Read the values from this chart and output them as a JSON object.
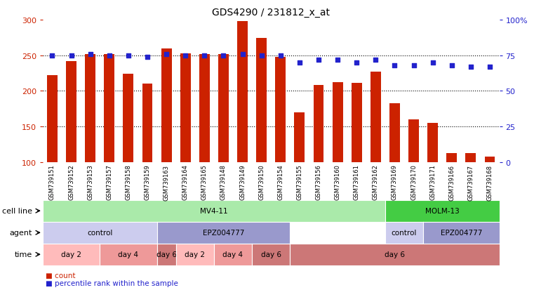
{
  "title": "GDS4290 / 231812_x_at",
  "samples": [
    "GSM739151",
    "GSM739152",
    "GSM739153",
    "GSM739157",
    "GSM739158",
    "GSM739159",
    "GSM739163",
    "GSM739164",
    "GSM739165",
    "GSM739148",
    "GSM739149",
    "GSM739150",
    "GSM739154",
    "GSM739155",
    "GSM739156",
    "GSM739160",
    "GSM739161",
    "GSM739162",
    "GSM739169",
    "GSM739170",
    "GSM739171",
    "GSM739166",
    "GSM739167",
    "GSM739168"
  ],
  "counts": [
    222,
    242,
    252,
    252,
    224,
    210,
    260,
    253,
    252,
    252,
    298,
    274,
    248,
    170,
    208,
    212,
    211,
    227,
    183,
    160,
    155,
    113,
    113,
    108
  ],
  "percentile": [
    75,
    75,
    76,
    75,
    75,
    74,
    76,
    75,
    75,
    75,
    76,
    75,
    75,
    70,
    72,
    72,
    70,
    72,
    68,
    68,
    70,
    68,
    67,
    67
  ],
  "bar_color": "#cc2200",
  "dot_color": "#2222cc",
  "ylim_left": [
    100,
    300
  ],
  "ylim_right": [
    0,
    100
  ],
  "yticks_left": [
    100,
    150,
    200,
    250,
    300
  ],
  "yticks_right": [
    0,
    25,
    50,
    75,
    100
  ],
  "grid_values": [
    150,
    200,
    250
  ],
  "cell_line_groups": [
    {
      "label": "MV4-11",
      "start": 0,
      "end": 18,
      "color": "#aaeaaa"
    },
    {
      "label": "MOLM-13",
      "start": 18,
      "end": 24,
      "color": "#44cc44"
    }
  ],
  "agent_groups": [
    {
      "label": "control",
      "start": 0,
      "end": 6,
      "color": "#ccccee"
    },
    {
      "label": "EPZ004777",
      "start": 6,
      "end": 13,
      "color": "#9999cc"
    },
    {
      "label": "control",
      "start": 18,
      "end": 20,
      "color": "#ccccee"
    },
    {
      "label": "EPZ004777",
      "start": 20,
      "end": 24,
      "color": "#9999cc"
    }
  ],
  "time_groups": [
    {
      "label": "day 2",
      "start": 0,
      "end": 3,
      "color": "#ffbbbb"
    },
    {
      "label": "day 4",
      "start": 3,
      "end": 6,
      "color": "#ee9999"
    },
    {
      "label": "day 6",
      "start": 6,
      "end": 7,
      "color": "#cc7777"
    },
    {
      "label": "day 2",
      "start": 7,
      "end": 9,
      "color": "#ffbbbb"
    },
    {
      "label": "day 4",
      "start": 9,
      "end": 11,
      "color": "#ee9999"
    },
    {
      "label": "day 6",
      "start": 11,
      "end": 13,
      "color": "#cc7777"
    },
    {
      "label": "day 6",
      "start": 13,
      "end": 24,
      "color": "#cc7777"
    }
  ],
  "tick_bg_color": "#cccccc"
}
